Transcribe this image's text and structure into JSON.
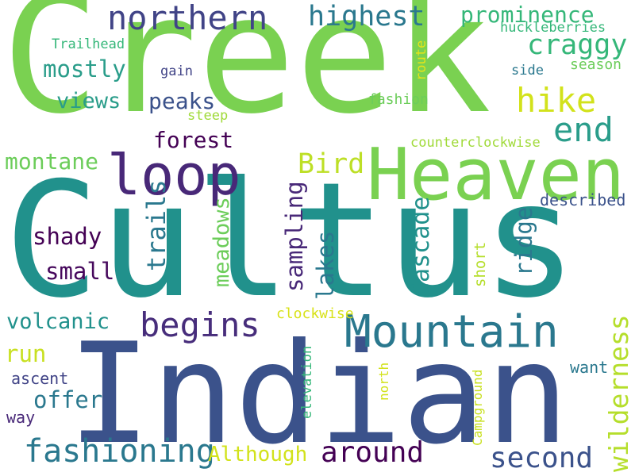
{
  "words": [
    {
      "text": "Creek",
      "color": "#7ad151"
    },
    {
      "text": "Cultus",
      "color": "#21918c"
    },
    {
      "text": "Indian",
      "color": "#3b528b"
    },
    {
      "text": "Heaven",
      "color": "#7ad151"
    },
    {
      "text": "Mountain",
      "color": "#2a788e"
    },
    {
      "text": "loop",
      "color": "#482878"
    },
    {
      "text": "northern",
      "color": "#414487"
    },
    {
      "text": "highest",
      "color": "#2a788e"
    },
    {
      "text": "prominence",
      "color": "#35b779"
    },
    {
      "text": "craggy",
      "color": "#35b779"
    },
    {
      "text": "hike",
      "color": "#d2e21b"
    },
    {
      "text": "end",
      "color": "#2a9d8a"
    },
    {
      "text": "mostly",
      "color": "#2a9d8a"
    },
    {
      "text": "views",
      "color": "#2a9d8a"
    },
    {
      "text": "peaks",
      "color": "#3b528b"
    },
    {
      "text": "forest",
      "color": "#440154"
    },
    {
      "text": "Trailhead",
      "color": "#35b779"
    },
    {
      "text": "huckleberries",
      "color": "#35b779"
    },
    {
      "text": "season",
      "color": "#6ccd5a"
    },
    {
      "text": "gain",
      "color": "#414487"
    },
    {
      "text": "side",
      "color": "#2a788e"
    },
    {
      "text": "route",
      "color": "#e5e419"
    },
    {
      "text": "fashion",
      "color": "#6ccd5a"
    },
    {
      "text": "steep",
      "color": "#a0da39"
    },
    {
      "text": "counterclockwise",
      "color": "#a0da39"
    },
    {
      "text": "montane",
      "color": "#6ccd5a"
    },
    {
      "text": "Bird",
      "color": "#bddf26"
    },
    {
      "text": "begins",
      "color": "#472d7b"
    },
    {
      "text": "described",
      "color": "#3b528b"
    },
    {
      "text": "shady",
      "color": "#440154"
    },
    {
      "text": "small",
      "color": "#46085c"
    },
    {
      "text": "trails",
      "color": "#2a788e"
    },
    {
      "text": "meadows",
      "color": "#6ccd5a"
    },
    {
      "text": "sampling",
      "color": "#482878"
    },
    {
      "text": "lakes",
      "color": "#2a788e"
    },
    {
      "text": "Cascade",
      "color": "#21918c"
    },
    {
      "text": "ridge",
      "color": "#2a788e"
    },
    {
      "text": "short",
      "color": "#b5de2b"
    },
    {
      "text": "wilderness",
      "color": "#b5de2b"
    },
    {
      "text": "volcanic",
      "color": "#21918c"
    },
    {
      "text": "clockwise",
      "color": "#d8e219"
    },
    {
      "text": "run",
      "color": "#c8e020"
    },
    {
      "text": "ascent",
      "color": "#414487"
    },
    {
      "text": "offer",
      "color": "#2a788e"
    },
    {
      "text": "way",
      "color": "#482878"
    },
    {
      "text": "fashioning",
      "color": "#2a788e"
    },
    {
      "text": "Although",
      "color": "#d2e21b"
    },
    {
      "text": "around",
      "color": "#440154"
    },
    {
      "text": "second",
      "color": "#3b528b"
    },
    {
      "text": "want",
      "color": "#2a788e"
    },
    {
      "text": "north",
      "color": "#d2e21b"
    },
    {
      "text": "elevation",
      "color": "#35b779"
    },
    {
      "text": "Campground",
      "color": "#c8e020"
    }
  ]
}
